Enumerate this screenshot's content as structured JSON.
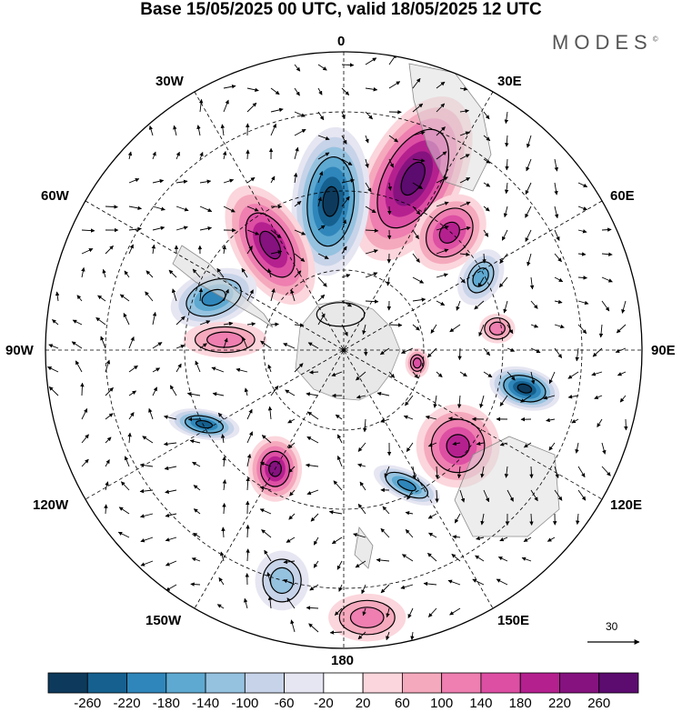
{
  "title": "Base 15/05/2025 00 UTC, valid 18/05/2025 12 UTC",
  "brand": "MODES",
  "brand_mark": "©",
  "longitude_labels": {
    "top": "0",
    "bottom": "180",
    "left": "90W",
    "right": "90E",
    "upper_left_outer": "60W",
    "upper_left_inner": "30W",
    "upper_right_inner": "30E",
    "upper_right_outer": "60E",
    "lower_left_outer": "120W",
    "lower_left_inner": "150W",
    "lower_right_inner": "150E",
    "lower_right_outer": "120E"
  },
  "vector_scale_label": "30",
  "colorbar": {
    "colors": [
      "#0d3a5c",
      "#15608f",
      "#2f86ba",
      "#5ea9d1",
      "#95c2df",
      "#c7d3e8",
      "#e6e6f2",
      "#ffffff",
      "#fbd6dc",
      "#f5a9bd",
      "#ee7fb0",
      "#dd4fa3",
      "#b5208f",
      "#85127f",
      "#5c0b6f"
    ],
    "labels": [
      "-260",
      "-220",
      "-180",
      "-140",
      "-100",
      "-60",
      "-20",
      "20",
      "60",
      "100",
      "140",
      "180",
      "220",
      "260"
    ]
  },
  "anomaly_cells": [
    {
      "lon": 22,
      "r": 0.62,
      "w": 0.16,
      "h": 0.3,
      "rot": 28,
      "level": 14
    },
    {
      "lon": -5,
      "r": 0.5,
      "w": 0.13,
      "h": 0.25,
      "rot": 5,
      "level": 0
    },
    {
      "lon": -35,
      "r": 0.43,
      "w": 0.12,
      "h": 0.22,
      "rot": -30,
      "level": 13
    },
    {
      "lon": -68,
      "r": 0.47,
      "w": 0.15,
      "h": 0.09,
      "rot": -20,
      "level": 2
    },
    {
      "lon": -85,
      "r": 0.4,
      "w": 0.14,
      "h": 0.06,
      "rot": 0,
      "level": 10
    },
    {
      "lon": 42,
      "r": 0.53,
      "w": 0.11,
      "h": 0.14,
      "rot": 40,
      "level": 12
    },
    {
      "lon": 62,
      "r": 0.52,
      "w": 0.07,
      "h": 0.1,
      "rot": 30,
      "level": 3
    },
    {
      "lon": 82,
      "r": 0.52,
      "w": 0.06,
      "h": 0.05,
      "rot": 0,
      "level": 10
    },
    {
      "lon": 102,
      "r": 0.62,
      "w": 0.12,
      "h": 0.07,
      "rot": 15,
      "level": 0
    },
    {
      "lon": 130,
      "r": 0.5,
      "w": 0.14,
      "h": 0.14,
      "rot": 45,
      "level": 12
    },
    {
      "lon": 155,
      "r": 0.5,
      "w": 0.12,
      "h": 0.05,
      "rot": 25,
      "level": 2
    },
    {
      "lon": -118,
      "r": 0.53,
      "w": 0.12,
      "h": 0.05,
      "rot": 10,
      "level": 1
    },
    {
      "lon": -150,
      "r": 0.46,
      "w": 0.09,
      "h": 0.11,
      "rot": 0,
      "level": 13
    },
    {
      "lon": -165,
      "r": 0.8,
      "w": 0.09,
      "h": 0.1,
      "rot": 0,
      "level": 4
    },
    {
      "lon": 175,
      "r": 0.9,
      "w": 0.13,
      "h": 0.08,
      "rot": 0,
      "level": 10
    },
    {
      "lon": 100,
      "r": 0.25,
      "w": 0.04,
      "h": 0.05,
      "rot": 0,
      "level": 11
    },
    {
      "lon": -5,
      "r": 0.12,
      "w": 0.08,
      "h": 0.04,
      "rot": 0,
      "level": 8
    }
  ]
}
